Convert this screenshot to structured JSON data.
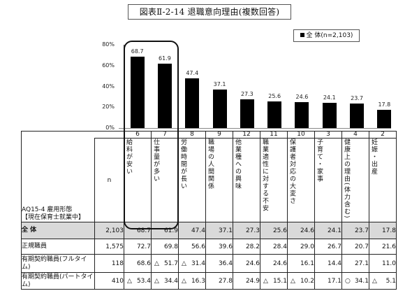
{
  "title": "図表Ⅱ-2-14 退職意向理由(複数回答)",
  "legend": {
    "label": "■全 体(n=2,103)",
    "swatch_color": "#000000",
    "text": "全 体(n=2,103)"
  },
  "chart_data": {
    "type": "bar",
    "title": "図表Ⅱ-2-14 退職意向理由(複数回答)",
    "xlabel": "",
    "ylabel": "",
    "ylim": [
      0,
      80
    ],
    "yticks": [
      "0%",
      "20%",
      "40%",
      "60%",
      "80%"
    ],
    "legend_position": "top-right",
    "grid": false,
    "categories": [
      "給料が安い",
      "仕事量が多い",
      "労働時間が長い",
      "職場の人間関係",
      "他業種への興味",
      "職業適性に対する不安",
      "保護者対応の大変さ",
      "子育て・家事",
      "健康上の理由(体力含む)",
      "妊娠・出産"
    ],
    "category_codes": [
      "6",
      "7",
      "8",
      "9",
      "12",
      "11",
      "10",
      "3",
      "4",
      "2"
    ],
    "series": [
      {
        "name": "全 体(n=2,103)",
        "color": "#000000",
        "values": [
          68.7,
          61.9,
          47.4,
          37.1,
          27.3,
          25.6,
          24.6,
          24.1,
          23.7,
          17.8
        ]
      }
    ],
    "annotations": [
      "Rounded rectangle highlights categories 6 (給料が安い) and 7 (仕事量が多い)"
    ]
  },
  "table": {
    "corner_label_line1": "AQ15-4 雇用形態",
    "corner_label_line2": "【現在保育士就業中】",
    "n_header": "n",
    "columns": [
      {
        "code": "6",
        "label": "給料が安い"
      },
      {
        "code": "7",
        "label": "仕事量が多い"
      },
      {
        "code": "8",
        "label": "労働時間が長い"
      },
      {
        "code": "9",
        "label": "職場の人間関係"
      },
      {
        "code": "12",
        "label": "他業種への興味"
      },
      {
        "code": "11",
        "label": "職業適性に対する不安"
      },
      {
        "code": "10",
        "label": "保護者対応の大変さ"
      },
      {
        "code": "3",
        "label": "子育て・家事"
      },
      {
        "code": "4",
        "label": "健康上の理由(体力含む)"
      },
      {
        "code": "2",
        "label": "妊娠・出産"
      }
    ],
    "rows": [
      {
        "label": "全 体",
        "n": "2,103",
        "values": [
          "68.7",
          "61.9",
          "47.4",
          "37.1",
          "27.3",
          "25.6",
          "24.6",
          "24.1",
          "23.7",
          "17.8"
        ],
        "marks": [
          "",
          "",
          "",
          "",
          "",
          "",
          "",
          "",
          "",
          ""
        ]
      },
      {
        "label": "正規職員",
        "n": "1,575",
        "values": [
          "72.7",
          "69.8",
          "56.6",
          "39.6",
          "28.2",
          "28.4",
          "29.0",
          "26.7",
          "20.7",
          "21.6"
        ],
        "marks": [
          "",
          "",
          "",
          "",
          "",
          "",
          "",
          "",
          "",
          ""
        ]
      },
      {
        "label": "有期契約職員(フルタイム)",
        "n": "118",
        "values": [
          "68.6",
          "51.7",
          "31.4",
          "36.4",
          "24.6",
          "24.6",
          "16.1",
          "14.4",
          "27.1",
          "11.0"
        ],
        "marks": [
          "",
          "△",
          "△",
          "",
          "",
          "",
          "",
          "",
          "",
          ""
        ]
      },
      {
        "label": "有期契約職員(パートタイム)",
        "n": "410",
        "values": [
          "53.4",
          "34.4",
          "16.3",
          "27.8",
          "24.9",
          "15.1",
          "10.2",
          "17.1",
          "34.1",
          "5.1"
        ],
        "marks": [
          "△",
          "△",
          "△",
          "",
          "",
          "△",
          "△",
          "",
          "○",
          "△"
        ]
      }
    ]
  }
}
